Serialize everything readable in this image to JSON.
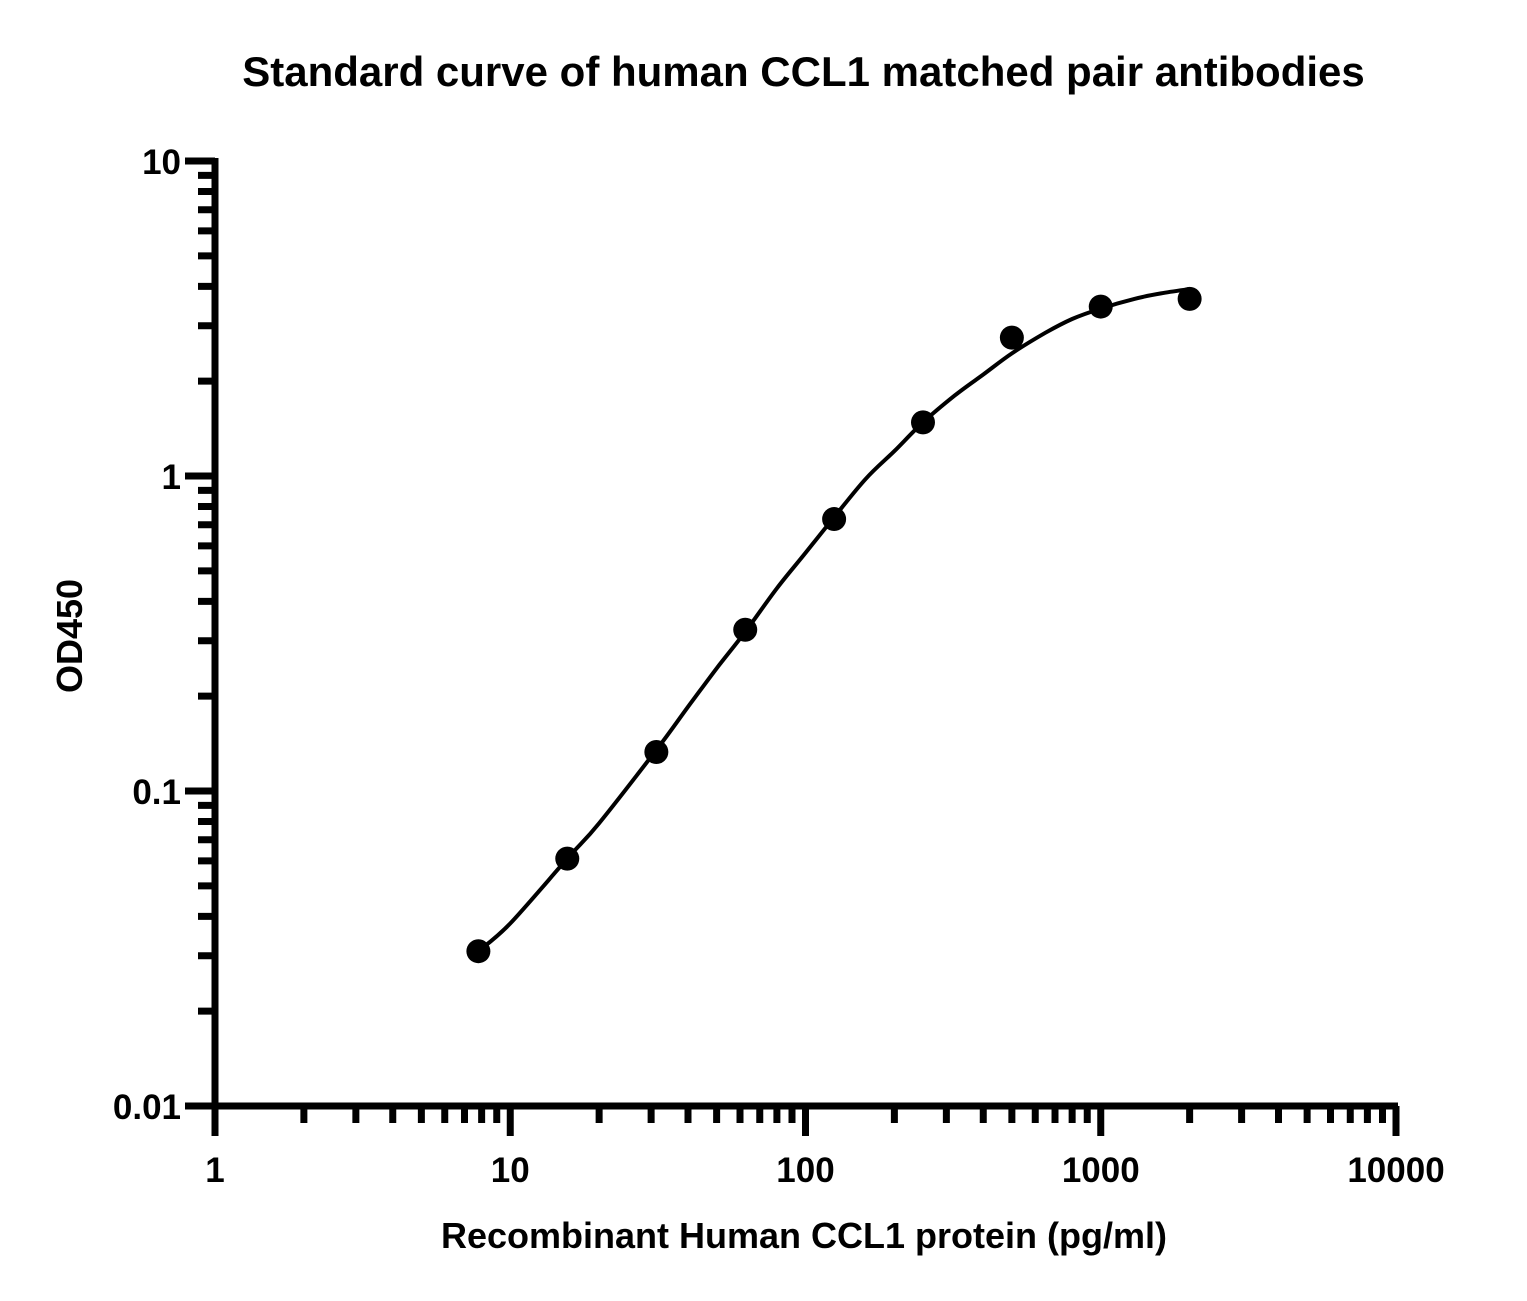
{
  "chart_data": {
    "type": "scatter",
    "title": "Standard curve of human CCL1 matched pair antibodies",
    "xlabel": "Recombinant Human CCL1 protein (pg/ml)",
    "ylabel": "OD450",
    "x_scale": "log",
    "y_scale": "log",
    "xlim": [
      1,
      10000
    ],
    "ylim": [
      0.01,
      10
    ],
    "x_ticks": [
      "1",
      "10",
      "100",
      "1000",
      "10000"
    ],
    "y_ticks": [
      "0.01",
      "0.1",
      "1",
      "10"
    ],
    "grid": false,
    "legend": "none",
    "colors": {
      "marker": "#000000",
      "curve": "#000000",
      "axis": "#000000"
    },
    "series": [
      {
        "x": [
          7.8,
          15.6,
          31.25,
          62.5,
          125,
          250,
          500,
          1000,
          2000
        ],
        "y": [
          0.031,
          0.061,
          0.133,
          0.325,
          0.73,
          1.48,
          2.75,
          3.45,
          3.65
        ]
      }
    ],
    "fit_curve": {
      "x_range": [
        7.8,
        2000
      ],
      "points": [
        [
          7.8,
          0.031
        ],
        [
          10,
          0.038
        ],
        [
          15.6,
          0.061
        ],
        [
          20,
          0.079
        ],
        [
          31.25,
          0.135
        ],
        [
          40,
          0.185
        ],
        [
          50,
          0.245
        ],
        [
          62.5,
          0.32
        ],
        [
          80,
          0.44
        ],
        [
          100,
          0.57
        ],
        [
          125,
          0.74
        ],
        [
          160,
          0.98
        ],
        [
          200,
          1.2
        ],
        [
          250,
          1.48
        ],
        [
          320,
          1.8
        ],
        [
          400,
          2.1
        ],
        [
          500,
          2.45
        ],
        [
          650,
          2.85
        ],
        [
          800,
          3.15
        ],
        [
          1000,
          3.4
        ],
        [
          1300,
          3.65
        ],
        [
          1600,
          3.8
        ],
        [
          2000,
          3.92
        ]
      ]
    }
  }
}
